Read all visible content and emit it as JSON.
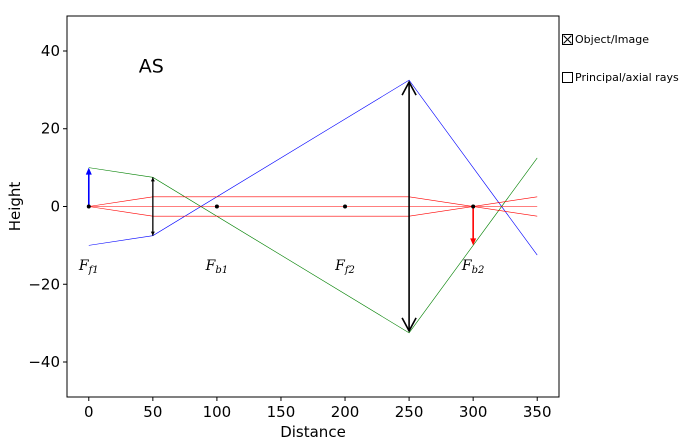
{
  "chart_data": {
    "type": "line",
    "title": "",
    "xlabel": "Distance",
    "ylabel": "Height",
    "xlim": [
      -17,
      367
    ],
    "ylim": [
      -49,
      49
    ],
    "x_ticks": [
      0,
      50,
      100,
      150,
      200,
      250,
      300,
      350
    ],
    "y_ticks": [
      -40,
      -20,
      0,
      20,
      40
    ],
    "y_tick_labels": [
      "−40",
      "−20",
      "0",
      "20",
      "40"
    ],
    "grid": false,
    "corner_label": {
      "text": "AS",
      "x": 39,
      "y": 36
    },
    "focal_labels": [
      {
        "base": "F",
        "sub": "f1",
        "x": 0,
        "y": -15
      },
      {
        "base": "F",
        "sub": "b1",
        "x": 100,
        "y": -15
      },
      {
        "base": "F",
        "sub": "f2",
        "x": 200,
        "y": -15
      },
      {
        "base": "F",
        "sub": "b2",
        "x": 300,
        "y": -15
      }
    ],
    "focal_points": [
      [
        0,
        0
      ],
      [
        100,
        0
      ],
      [
        200,
        0
      ],
      [
        300,
        0
      ]
    ],
    "object_arrow": {
      "x": 0,
      "y0": 0,
      "y1": 10,
      "color": "#0000ff"
    },
    "image_arrow": {
      "x": 300,
      "y0": 0,
      "y1": -10,
      "color": "#ff0000"
    },
    "lenses": [
      {
        "x": 50,
        "y_min": -7.5,
        "y_max": 7.5,
        "color": "#000000"
      },
      {
        "x": 250,
        "y_min": -32,
        "y_max": 32,
        "color": "#000000"
      }
    ],
    "series": [
      {
        "color": "#0000ff",
        "values": [
          [
            0,
            -10
          ],
          [
            50,
            -7.5
          ],
          [
            250,
            32.5
          ],
          [
            350,
            -12.5
          ]
        ]
      },
      {
        "color": "#008000",
        "values": [
          [
            0,
            10
          ],
          [
            50,
            7.5
          ],
          [
            250,
            -32.5
          ],
          [
            350,
            12.5
          ]
        ]
      },
      {
        "color": "#ff0000",
        "values": [
          [
            0,
            0
          ],
          [
            50,
            2.5
          ],
          [
            250,
            2.5
          ],
          [
            350,
            -2.5
          ]
        ]
      },
      {
        "color": "#ff0000",
        "values": [
          [
            0,
            0
          ],
          [
            50,
            -2.5
          ],
          [
            250,
            -2.5
          ],
          [
            350,
            2.5
          ]
        ]
      },
      {
        "color": "#ff0000",
        "values": [
          [
            0,
            0
          ],
          [
            350,
            0
          ]
        ]
      }
    ]
  },
  "legend": {
    "items": [
      {
        "label": "Object/Image",
        "checked": true
      },
      {
        "label": "Principal/axial rays",
        "checked": false
      }
    ]
  }
}
